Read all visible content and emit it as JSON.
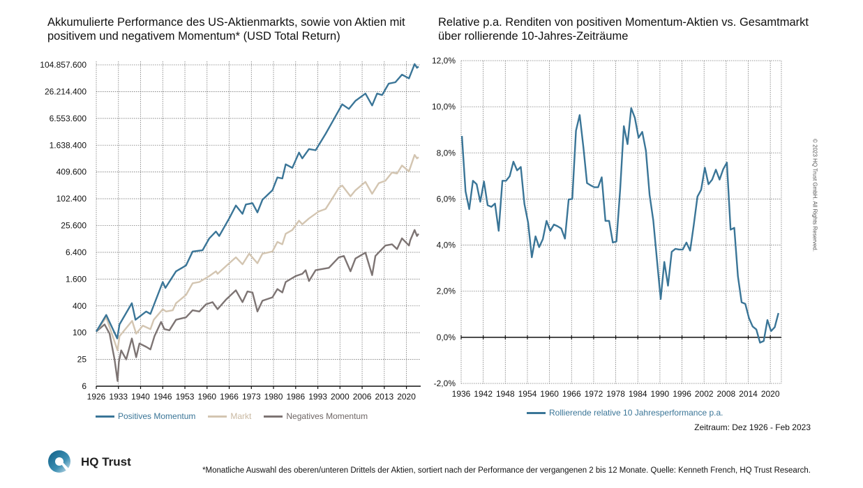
{
  "logo": {
    "text": "HQ Trust"
  },
  "copyright": "© 2023 HQ Trust GmbH. All Rights Reserved.",
  "period": "Zeitraum: Dez 1926 - Feb 2023",
  "footnote": "*Monatliche Auswahl des oberen/unteren Drittels der Aktien, sortiert nach der Performance der vergangenen 2 bis 12 Monate. Quelle: Kenneth French, HQ Trust Research.",
  "chart_data": [
    {
      "type": "line",
      "title": "Akkumulierte Performance des US-Aktienmarkts, sowie von Aktien mit positivem und negativem Momentum* (USD Total Return)",
      "xlabel": "",
      "ylabel": "",
      "yscale": "log",
      "ylim": [
        6.25,
        104857600
      ],
      "xlim": [
        1926,
        2023.2
      ],
      "grid": true,
      "legend": "bottom",
      "xticks": [
        "1926",
        "1933",
        "1940",
        "1946",
        "1953",
        "1960",
        "1966",
        "1973",
        "1980",
        "1986",
        "1993",
        "2000",
        "2006",
        "2013",
        "2020"
      ],
      "xtick_values": [
        1926,
        1932.67,
        1939.33,
        1946,
        1952.67,
        1959.33,
        1966,
        1972.67,
        1979.33,
        1986,
        1992.67,
        1999.33,
        2006,
        2012.67,
        2019.33
      ],
      "yticks": [
        "6",
        "25",
        "100",
        "400",
        "1.600",
        "6.400",
        "25.600",
        "102.400",
        "409.600",
        "1.638.400",
        "6.553.600",
        "26.214.400",
        "104.857.600"
      ],
      "ytick_values": [
        6.25,
        25,
        100,
        400,
        1600,
        6400,
        25600,
        102400,
        409600,
        1638400,
        6553600,
        26214400,
        104857600
      ],
      "series": [
        {
          "name": "Positives Momentum",
          "color": "#3a7597",
          "x": [
            1926,
            1929,
            1932.3,
            1933,
            1936.7,
            1937.8,
            1941,
            1942.3,
            1946,
            1946.8,
            1950,
            1953,
            1955,
            1958,
            1960,
            1962,
            1963,
            1966,
            1968,
            1970,
            1971,
            1973,
            1974.5,
            1976,
            1979,
            1980.5,
            1982,
            1983,
            1985,
            1987,
            1988,
            1990,
            1992,
            1995,
            1997,
            2000,
            2002,
            2004,
            2007,
            2009,
            2010.5,
            2012,
            2014,
            2016,
            2018,
            2020.1,
            2021.8,
            2022.5,
            2023
          ],
          "y": [
            106,
            250,
            74,
            153,
            459,
            195,
            299,
            264,
            1375,
            1012,
            2390,
            3240,
            6670,
            7130,
            13200,
            18800,
            14900,
            37000,
            72000,
            47000,
            76000,
            81500,
            50400,
            97400,
            159000,
            309000,
            292000,
            608000,
            506000,
            1120000,
            828000,
            1340000,
            1260000,
            2940000,
            5400000,
            13600000,
            10700000,
            16300000,
            23700000,
            12800000,
            23700000,
            22000000,
            39700000,
            42600000,
            63000000,
            52000000,
            109000000,
            90000000,
            96000000
          ]
        },
        {
          "name": "Markt",
          "color": "#d3c5b1",
          "x": [
            1926,
            1929,
            1932.4,
            1933,
            1936.8,
            1938,
            1940,
            1942.3,
            1943.3,
            1946,
            1947,
            1949,
            1950,
            1953,
            1955,
            1957,
            1960,
            1962,
            1962.5,
            1966,
            1968,
            1970,
            1972,
            1974.5,
            1976,
            1979,
            1980.5,
            1982,
            1983,
            1985,
            1987,
            1988,
            1990,
            1993,
            1995,
            1997,
            1999,
            2000,
            2002.5,
            2004,
            2007,
            2009,
            2011,
            2013,
            2015,
            2016.5,
            2018,
            2020.1,
            2021.8,
            2022.5,
            2023
          ],
          "y": [
            106,
            221,
            40,
            83,
            184,
            95,
            144,
            120,
            195,
            337,
            299,
            318,
            459,
            704,
            1290,
            1375,
            1870,
            2390,
            2100,
            3640,
            4930,
            3440,
            5950,
            3640,
            5950,
            6670,
            10950,
            9700,
            16700,
            20300,
            32900,
            27300,
            37000,
            53300,
            60300,
            103000,
            180000,
            203000,
            116000,
            159000,
            245000,
            132000,
            229000,
            260000,
            399000,
            378000,
            572000,
            423000,
            990000,
            828000,
            880000
          ]
        },
        {
          "name": "Negatives Momentum",
          "color": "#7d7473",
          "x": [
            1926,
            1928.5,
            1930,
            1931.5,
            1932.4,
            1932.8,
            1933.5,
            1935,
            1936.7,
            1938,
            1939,
            1941,
            1942.3,
            1943.5,
            1945.5,
            1946.5,
            1948,
            1950,
            1953,
            1955,
            1957,
            1959,
            1961,
            1962.5,
            1965,
            1968,
            1970,
            1971.5,
            1973,
            1974.5,
            1976,
            1979,
            1980.5,
            1982,
            1983,
            1986,
            1988,
            1989,
            1990,
            1992,
            1996,
            1999,
            2000.5,
            2002.5,
            2004,
            2007,
            2009,
            2010,
            2013,
            2015,
            2016.5,
            2018,
            2020.1,
            2020.5,
            2021.8,
            2022.5,
            2023
          ],
          "y": [
            106,
            153,
            95,
            25,
            8.2,
            22,
            40,
            25,
            74,
            28,
            57,
            48,
            42,
            83,
            174,
            120,
            113,
            195,
            221,
            318,
            299,
            433,
            486,
            337,
            550,
            895,
            486,
            844,
            800,
            299,
            521,
            623,
            955,
            800,
            1375,
            1870,
            2100,
            2530,
            1450,
            2530,
            2860,
            4930,
            5280,
            2390,
            4650,
            6300,
            1960,
            5280,
            9100,
            9700,
            7550,
            13200,
            9100,
            12000,
            20300,
            14900,
            16700
          ]
        }
      ]
    },
    {
      "type": "line",
      "title": "Relative p.a. Renditen von positiven Momentum-Aktien vs. Gesamtmarkt über rollierende 10-Jahres-Zeiträume",
      "xlabel": "",
      "ylabel": "",
      "ylim": [
        -2.0,
        12.0
      ],
      "xlim": [
        1936,
        2023
      ],
      "grid": true,
      "legend": "bottom",
      "xticks": [
        "1936",
        "1942",
        "1948",
        "1954",
        "1960",
        "1966",
        "1972",
        "1978",
        "1984",
        "1990",
        "1996",
        "2002",
        "2008",
        "2014",
        "2020"
      ],
      "yticks": [
        "-2,0%",
        "0,0%",
        "2,0%",
        "4,0%",
        "6,0%",
        "8,0%",
        "10,0%",
        "12,0%"
      ],
      "ytick_values": [
        -2,
        0,
        2,
        4,
        6,
        8,
        10,
        12
      ],
      "series": [
        {
          "name": "Rollierende relative 10 Jahresperformance p.a.",
          "color": "#3a7597",
          "x": [
            1936,
            1937,
            1938,
            1939,
            1940,
            1941,
            1942,
            1943,
            1944,
            1945,
            1946,
            1947,
            1948,
            1949,
            1950,
            1951,
            1952,
            1953,
            1954,
            1955,
            1956,
            1957,
            1958,
            1959,
            1960,
            1961,
            1962,
            1963,
            1964,
            1965,
            1966,
            1967,
            1968,
            1969,
            1970,
            1971,
            1972,
            1973,
            1974,
            1975,
            1976,
            1977,
            1978,
            1979,
            1980,
            1981,
            1982,
            1983,
            1984,
            1985,
            1986,
            1987,
            1988,
            1989,
            1990,
            1991,
            1992,
            1993,
            1994,
            1995,
            1996,
            1997,
            1998,
            1999,
            2000,
            2001,
            2002,
            2003,
            2004,
            2005,
            2006,
            2007,
            2008,
            2009,
            2010,
            2011,
            2012,
            2013,
            2014,
            2015,
            2016,
            2017,
            2018,
            2019,
            2020,
            2021,
            2022
          ],
          "y": [
            8.73,
            6.33,
            5.56,
            6.79,
            6.64,
            5.88,
            6.76,
            5.73,
            5.66,
            5.8,
            4.62,
            6.79,
            6.79,
            6.99,
            7.62,
            7.24,
            7.39,
            5.78,
            4.97,
            3.47,
            4.38,
            3.91,
            4.26,
            5.05,
            4.62,
            4.89,
            4.82,
            4.72,
            4.28,
            5.98,
            6.0,
            8.96,
            9.64,
            8.25,
            6.69,
            6.59,
            6.51,
            6.51,
            6.94,
            5.05,
            5.05,
            4.11,
            4.16,
            6.4,
            9.16,
            8.38,
            9.94,
            9.52,
            8.66,
            8.91,
            8.1,
            6.18,
            5.07,
            3.35,
            1.66,
            3.27,
            2.24,
            3.71,
            3.84,
            3.81,
            3.81,
            4.11,
            3.76,
            4.87,
            6.1,
            6.4,
            7.36,
            6.64,
            6.84,
            7.27,
            6.84,
            7.29,
            7.58,
            4.67,
            4.75,
            2.65,
            1.52,
            1.45,
            0.83,
            0.47,
            0.34,
            -0.23,
            -0.16,
            0.75,
            0.27,
            0.44,
            1.05
          ]
        }
      ]
    }
  ]
}
